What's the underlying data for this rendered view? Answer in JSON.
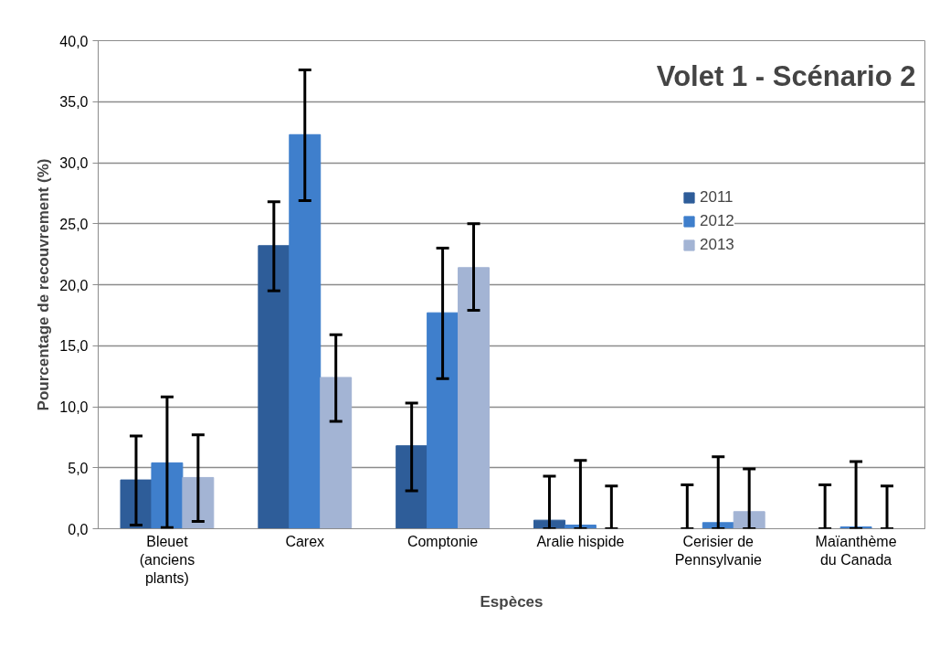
{
  "chart_data": {
    "type": "bar",
    "title": "Volet 1 - Scénario 2",
    "xlabel": "Espèces",
    "ylabel": "Pourcentage de recouvrement (%)",
    "categories": [
      "Bleuet\n(anciens\nplants)",
      "Carex",
      "Comptonie",
      "Aralie hispide",
      "Cerisier de\nPennsylvanie",
      "Maïanthème\ndu Canada"
    ],
    "series": [
      {
        "name": "2011",
        "color": "#2e5d99",
        "values": [
          4.0,
          23.2,
          6.8,
          0.7,
          0.0,
          0.0
        ],
        "errors": [
          [
            0.3,
            7.6
          ],
          [
            19.5,
            26.8
          ],
          [
            3.1,
            10.3
          ],
          [
            0.0,
            4.3
          ],
          [
            0.0,
            3.6
          ],
          [
            0.0,
            3.6
          ]
        ]
      },
      {
        "name": "2012",
        "color": "#3f7fcc",
        "values": [
          5.4,
          32.3,
          17.7,
          0.3,
          0.5,
          0.15
        ],
        "errors": [
          [
            0.1,
            10.8
          ],
          [
            26.9,
            37.6
          ],
          [
            12.3,
            23.0
          ],
          [
            0.0,
            5.6
          ],
          [
            0.0,
            5.9
          ],
          [
            0.0,
            5.5
          ]
        ]
      },
      {
        "name": "2013",
        "color": "#a3b4d4",
        "values": [
          4.2,
          12.4,
          21.4,
          0.0,
          1.4,
          0.0
        ],
        "errors": [
          [
            0.6,
            7.7
          ],
          [
            8.8,
            15.9
          ],
          [
            17.9,
            25.0
          ],
          [
            0.0,
            3.5
          ],
          [
            0.0,
            4.9
          ],
          [
            0.0,
            3.5
          ]
        ]
      }
    ],
    "ylim": [
      0,
      40
    ],
    "yticks": [
      {
        "value": 0,
        "label": "0,0"
      },
      {
        "value": 5,
        "label": "5,0"
      },
      {
        "value": 10,
        "label": "10,0"
      },
      {
        "value": 15,
        "label": "15,0"
      },
      {
        "value": 20,
        "label": "20,0"
      },
      {
        "value": 25,
        "label": "25,0"
      },
      {
        "value": 30,
        "label": "30,0"
      },
      {
        "value": 35,
        "label": "35,0"
      },
      {
        "value": 40,
        "label": "40,0"
      }
    ],
    "grid": "y",
    "legend": "right"
  }
}
